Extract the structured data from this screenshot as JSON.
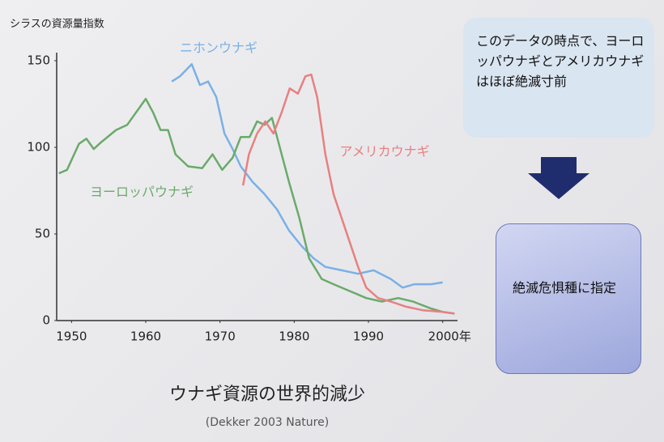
{
  "chart_data": {
    "type": "line",
    "title": "ウナギ資源の世界的減少",
    "source": "(Dekker 2003 Nature)",
    "y_label": "シラスの資源量指数",
    "xlim": [
      1948,
      2002
    ],
    "ylim": [
      0,
      150
    ],
    "xticks": [
      1950,
      1960,
      1970,
      1980,
      1990,
      {
        "value": 2000,
        "label": "2000年"
      }
    ],
    "yticks": [
      0,
      50,
      100,
      150
    ],
    "series": [
      {
        "name": "ニホンウナギ",
        "color": "#7ab0e6",
        "x": [
          1963.5,
          1964.6,
          1966.2,
          1967.3,
          1968.4,
          1969.5,
          1970.6,
          1971.7,
          1972.8,
          1974.4,
          1976,
          1977.7,
          1979.3,
          1981,
          1982.6,
          1984.2,
          1986.4,
          1988.6,
          1990.7,
          1993,
          1994.6,
          1996.2,
          1998.4,
          2000
        ],
        "values": [
          138,
          141,
          148,
          136,
          138,
          129,
          108,
          99,
          89,
          80,
          73,
          64,
          52,
          43,
          36,
          31,
          29,
          27,
          29,
          24,
          19,
          21,
          21,
          22
        ]
      },
      {
        "name": "ヨーロッパウナギ",
        "color": "#6aaa6a",
        "x": [
          1948.3,
          1949.4,
          1951,
          1952,
          1953,
          1954,
          1956,
          1957.5,
          1960,
          1961,
          1962,
          1963,
          1964,
          1965.7,
          1967.6,
          1969,
          1970.3,
          1971.7,
          1972.8,
          1974,
          1975,
          1976,
          1977,
          1978,
          1979.3,
          1980.7,
          1982,
          1983.7,
          1985.3,
          1987.5,
          1989.7,
          1991.8,
          1994,
          1996,
          1998.4,
          2000,
          2001.6
        ],
        "values": [
          85,
          87,
          102,
          105,
          99,
          103,
          110,
          113,
          128,
          120,
          110,
          110,
          96,
          89,
          88,
          96,
          87,
          94,
          106,
          106,
          115,
          113,
          117,
          101,
          80,
          59,
          36,
          24,
          21,
          17,
          13,
          11,
          13,
          11,
          7,
          5,
          4
        ]
      },
      {
        "name": "アメリカウナギ",
        "color": "#e88080",
        "x": [
          1973.1,
          1973.9,
          1975,
          1976.1,
          1977.2,
          1978.3,
          1979.4,
          1980.5,
          1981.5,
          1982.3,
          1983.1,
          1984.2,
          1985.3,
          1986.4,
          1987.5,
          1988.6,
          1989.7,
          1991.3,
          1993,
          1995.1,
          1997.3,
          2000,
          2001.6
        ],
        "values": [
          78,
          96,
          108,
          115,
          108,
          120,
          134,
          131,
          141,
          142,
          129,
          96,
          73,
          59,
          45,
          31,
          19,
          13,
          11,
          8,
          6,
          5,
          4
        ]
      }
    ],
    "annotations": [
      "このデータの時点で、ヨーロッパウナギとアメリカウナギはほぼ絶滅寸前",
      "絶滅危惧種に指定"
    ]
  }
}
